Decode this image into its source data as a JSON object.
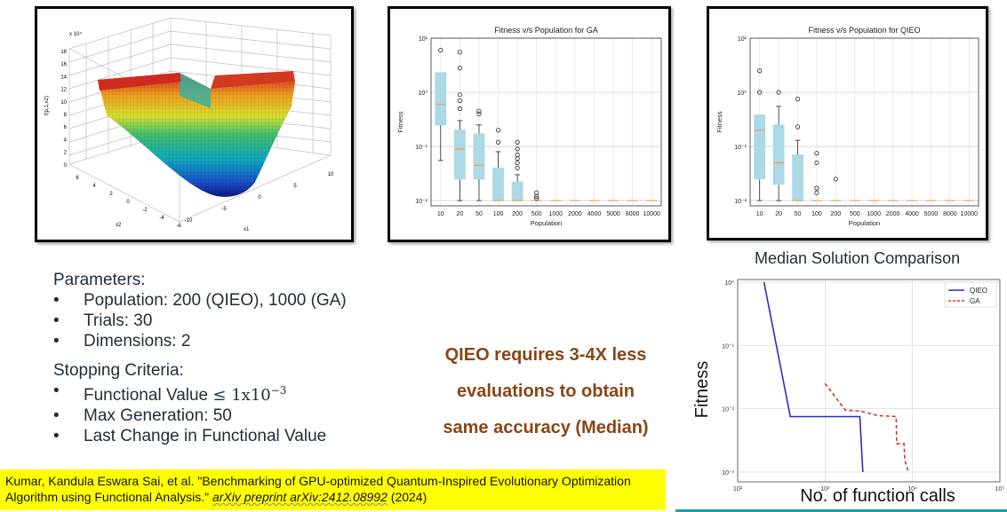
{
  "surface_plot": {
    "y_scale_label": "x 10⁴",
    "z_label": "f(p,1,x2)",
    "z_ticks": [
      "18",
      "16",
      "14",
      "12",
      "10",
      "8",
      "6",
      "4",
      "2",
      "0"
    ],
    "x1_label": "x1",
    "x2_label": "x2",
    "x1_ticks": [
      "-10",
      "-5",
      "0",
      "5",
      "10"
    ],
    "x2_ticks": [
      "6",
      "4",
      "2",
      "0",
      "-2",
      "-4",
      "-6"
    ]
  },
  "chart_data": [
    {
      "type": "box",
      "title": "Fitness v/s Population for GA",
      "xlabel": "Population",
      "ylabel": "Fitness",
      "yscale": "log",
      "ylim": [
        0.008,
        10
      ],
      "ytick_labels": [
        "10¹",
        "10⁰",
        "10⁻¹",
        "10⁻²"
      ],
      "ytick_values": [
        10,
        1,
        0.1,
        0.01
      ],
      "categories": [
        "10",
        "20",
        "50",
        "100",
        "200",
        "500",
        "1000",
        "2000",
        "4000",
        "5000",
        "8000",
        "10000"
      ],
      "boxes": [
        {
          "wlo": 0.055,
          "q1": 0.25,
          "med": 0.6,
          "q3": 2.3,
          "whi": 2.3,
          "fliers": [
            6
          ]
        },
        {
          "wlo": 0.01,
          "q1": 0.025,
          "med": 0.09,
          "q3": 0.2,
          "whi": 0.3,
          "fliers": [
            0.5,
            0.7,
            0.9,
            2.8,
            5.5
          ]
        },
        {
          "wlo": 0.01,
          "q1": 0.025,
          "med": 0.045,
          "q3": 0.17,
          "whi": 0.25,
          "fliers": [
            0.4,
            0.45
          ]
        },
        {
          "wlo": 0.01,
          "q1": 0.01,
          "med": 0.01,
          "q3": 0.04,
          "whi": 0.08,
          "fliers": [
            0.12,
            0.2
          ]
        },
        {
          "wlo": 0.01,
          "q1": 0.01,
          "med": 0.01,
          "q3": 0.022,
          "whi": 0.03,
          "fliers": [
            0.04,
            0.05,
            0.06,
            0.07,
            0.09,
            0.12
          ]
        },
        {
          "wlo": 0.01,
          "q1": 0.01,
          "med": 0.01,
          "q3": 0.01,
          "whi": 0.01,
          "fliers": [
            0.011,
            0.012,
            0.014
          ]
        },
        {
          "wlo": 0.01,
          "q1": 0.01,
          "med": 0.01,
          "q3": 0.01,
          "whi": 0.01,
          "fliers": []
        },
        {
          "wlo": 0.01,
          "q1": 0.01,
          "med": 0.01,
          "q3": 0.01,
          "whi": 0.01,
          "fliers": []
        },
        {
          "wlo": 0.01,
          "q1": 0.01,
          "med": 0.01,
          "q3": 0.01,
          "whi": 0.01,
          "fliers": []
        },
        {
          "wlo": 0.01,
          "q1": 0.01,
          "med": 0.01,
          "q3": 0.01,
          "whi": 0.01,
          "fliers": []
        },
        {
          "wlo": 0.01,
          "q1": 0.01,
          "med": 0.01,
          "q3": 0.01,
          "whi": 0.01,
          "fliers": []
        },
        {
          "wlo": 0.01,
          "q1": 0.01,
          "med": 0.01,
          "q3": 0.01,
          "whi": 0.01,
          "fliers": []
        }
      ]
    },
    {
      "type": "box",
      "title": "Fitness v/s Population for QIEO",
      "xlabel": "Population",
      "ylabel": "Fitness",
      "yscale": "log",
      "ylim": [
        0.008,
        10
      ],
      "ytick_labels": [
        "10¹",
        "10⁰",
        "10⁻¹",
        "10⁻²"
      ],
      "ytick_values": [
        10,
        1,
        0.1,
        0.01
      ],
      "categories": [
        "10",
        "20",
        "50",
        "100",
        "200",
        "500",
        "1000",
        "2000",
        "4000",
        "5000",
        "8000",
        "10000"
      ],
      "boxes": [
        {
          "wlo": 0.01,
          "q1": 0.025,
          "med": 0.2,
          "q3": 0.38,
          "whi": 0.38,
          "fliers": [
            1.0,
            2.5
          ]
        },
        {
          "wlo": 0.01,
          "q1": 0.02,
          "med": 0.05,
          "q3": 0.25,
          "whi": 0.55,
          "fliers": [
            1.0
          ]
        },
        {
          "wlo": 0.01,
          "q1": 0.01,
          "med": 0.01,
          "q3": 0.07,
          "whi": 0.13,
          "fliers": [
            0.23,
            0.75
          ]
        },
        {
          "wlo": 0.01,
          "q1": 0.01,
          "med": 0.01,
          "q3": 0.01,
          "whi": 0.01,
          "fliers": [
            0.014,
            0.017,
            0.05,
            0.075
          ]
        },
        {
          "wlo": 0.01,
          "q1": 0.01,
          "med": 0.01,
          "q3": 0.01,
          "whi": 0.01,
          "fliers": [
            0.025
          ]
        },
        {
          "wlo": 0.01,
          "q1": 0.01,
          "med": 0.01,
          "q3": 0.01,
          "whi": 0.01,
          "fliers": []
        },
        {
          "wlo": 0.01,
          "q1": 0.01,
          "med": 0.01,
          "q3": 0.01,
          "whi": 0.01,
          "fliers": []
        },
        {
          "wlo": 0.01,
          "q1": 0.01,
          "med": 0.01,
          "q3": 0.01,
          "whi": 0.01,
          "fliers": []
        },
        {
          "wlo": 0.01,
          "q1": 0.01,
          "med": 0.01,
          "q3": 0.01,
          "whi": 0.01,
          "fliers": []
        },
        {
          "wlo": 0.01,
          "q1": 0.01,
          "med": 0.01,
          "q3": 0.01,
          "whi": 0.01,
          "fliers": []
        },
        {
          "wlo": 0.01,
          "q1": 0.01,
          "med": 0.01,
          "q3": 0.01,
          "whi": 0.01,
          "fliers": []
        },
        {
          "wlo": 0.01,
          "q1": 0.01,
          "med": 0.01,
          "q3": 0.01,
          "whi": 0.01,
          "fliers": []
        }
      ]
    },
    {
      "type": "line",
      "title": "Median Solution Comparison",
      "xlabel": "No. of function calls",
      "ylabel": "Fitness",
      "xscale": "log",
      "yscale": "log",
      "xlim": [
        100,
        100000
      ],
      "ylim": [
        0.0007,
        1.1
      ],
      "xtick_labels": [
        "10²",
        "10³",
        "10⁴",
        "10⁵"
      ],
      "xtick_values": [
        100,
        1000,
        10000,
        100000
      ],
      "ytick_labels": [
        "10⁰",
        "10⁻¹",
        "10⁻²",
        "10⁻³"
      ],
      "ytick_values": [
        1,
        0.1,
        0.01,
        0.001
      ],
      "legend_position": "top-right",
      "series": [
        {
          "name": "QIEO",
          "color": "#2a2ad0",
          "dash": "solid",
          "x": [
            200,
            400,
            2500,
            2500,
            2700
          ],
          "y": [
            1.0,
            0.0075,
            0.0075,
            0.0072,
            0.001
          ]
        },
        {
          "name": "GA",
          "color": "#e03030",
          "dash": "dashed",
          "x": [
            1000,
            1700,
            2500,
            4000,
            6500,
            6600,
            8000,
            8200,
            9000
          ],
          "y": [
            0.025,
            0.0095,
            0.0092,
            0.0078,
            0.0075,
            0.0028,
            0.0028,
            0.0015,
            0.001
          ]
        }
      ]
    }
  ],
  "params": {
    "title": "Parameters:",
    "items": [
      "Population: 200 (QIEO), 1000 (GA)",
      "Trials: 30",
      "Dimensions: 2"
    ]
  },
  "stopping": {
    "title": "Stopping Criteria:",
    "fv_prefix": "Functional Value",
    "fv_math": "≤ 1x10",
    "fv_exp": "−3",
    "max_gen": "Max Generation: 50",
    "last_change": "Last Change in Functional Value"
  },
  "callout": {
    "lines": [
      "QIEO requires 3-4X less",
      "evaluations to obtain",
      "same accuracy (Median)"
    ],
    "color": "#8b4513"
  },
  "citation": {
    "main": "Kumar, Kandula Eswara Sai, et al. \"Benchmarking of GPU-optimized Quantum-Inspired Evolutionary Optimization Algorithm using Functional Analysis.\"",
    "journal": "arXiv preprint arXiv:2412.08992",
    "year": "(2024)",
    "highlight": "#ffff00"
  }
}
